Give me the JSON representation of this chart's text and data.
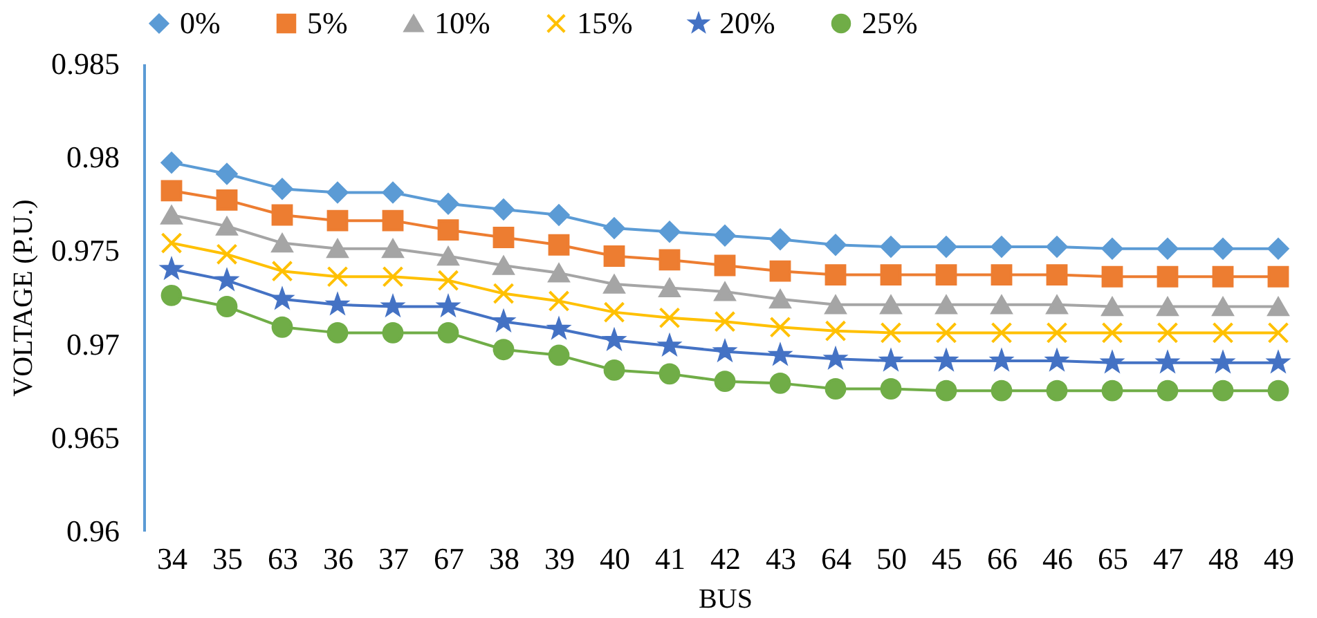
{
  "chart_data": {
    "type": "line",
    "xlabel": "BUS",
    "ylabel": "VOLTAGE (P.U.)",
    "categories": [
      "34",
      "35",
      "63",
      "36",
      "37",
      "67",
      "38",
      "39",
      "40",
      "41",
      "42",
      "43",
      "64",
      "50",
      "45",
      "66",
      "46",
      "65",
      "47",
      "48",
      "49"
    ],
    "ylim": [
      0.96,
      0.985
    ],
    "yticks": [
      0.96,
      0.965,
      0.97,
      0.975,
      0.98,
      0.985
    ],
    "legend": "top",
    "grid": false,
    "series": [
      {
        "name": "0%",
        "color": "#5b9bd5",
        "marker": "diamond",
        "values": [
          0.9797,
          0.9791,
          0.9783,
          0.9781,
          0.9781,
          0.9775,
          0.9772,
          0.9769,
          0.9762,
          0.976,
          0.9758,
          0.9756,
          0.9753,
          0.9752,
          0.9752,
          0.9752,
          0.9752,
          0.9751,
          0.9751,
          0.9751,
          0.9751
        ]
      },
      {
        "name": "5%",
        "color": "#ed7d31",
        "marker": "square",
        "values": [
          0.9782,
          0.9777,
          0.9769,
          0.9766,
          0.9766,
          0.9761,
          0.9757,
          0.9753,
          0.9747,
          0.9745,
          0.9742,
          0.9739,
          0.9737,
          0.9737,
          0.9737,
          0.9737,
          0.9737,
          0.9736,
          0.9736,
          0.9736,
          0.9736
        ]
      },
      {
        "name": "10%",
        "color": "#a5a5a5",
        "marker": "triangle",
        "values": [
          0.9769,
          0.9763,
          0.9754,
          0.9751,
          0.9751,
          0.9747,
          0.9742,
          0.9738,
          0.9732,
          0.973,
          0.9728,
          0.9724,
          0.9721,
          0.9721,
          0.9721,
          0.9721,
          0.9721,
          0.972,
          0.972,
          0.972,
          0.972
        ]
      },
      {
        "name": "15%",
        "color": "#ffc000",
        "marker": "cross",
        "values": [
          0.9754,
          0.9748,
          0.9739,
          0.9736,
          0.9736,
          0.9734,
          0.9727,
          0.9723,
          0.9717,
          0.9714,
          0.9712,
          0.9709,
          0.9707,
          0.9706,
          0.9706,
          0.9706,
          0.9706,
          0.9706,
          0.9706,
          0.9706,
          0.9706
        ]
      },
      {
        "name": "20%",
        "color": "#4472c4",
        "marker": "star",
        "values": [
          0.974,
          0.9734,
          0.9724,
          0.9721,
          0.972,
          0.972,
          0.9712,
          0.9708,
          0.9702,
          0.9699,
          0.9696,
          0.9694,
          0.9692,
          0.9691,
          0.9691,
          0.9691,
          0.9691,
          0.969,
          0.969,
          0.969,
          0.969
        ]
      },
      {
        "name": "25%",
        "color": "#70ad47",
        "marker": "circle",
        "values": [
          0.9726,
          0.972,
          0.9709,
          0.9706,
          0.9706,
          0.9706,
          0.9697,
          0.9694,
          0.9686,
          0.9684,
          0.968,
          0.9679,
          0.9676,
          0.9676,
          0.9675,
          0.9675,
          0.9675,
          0.9675,
          0.9675,
          0.9675,
          0.9675
        ]
      }
    ]
  }
}
